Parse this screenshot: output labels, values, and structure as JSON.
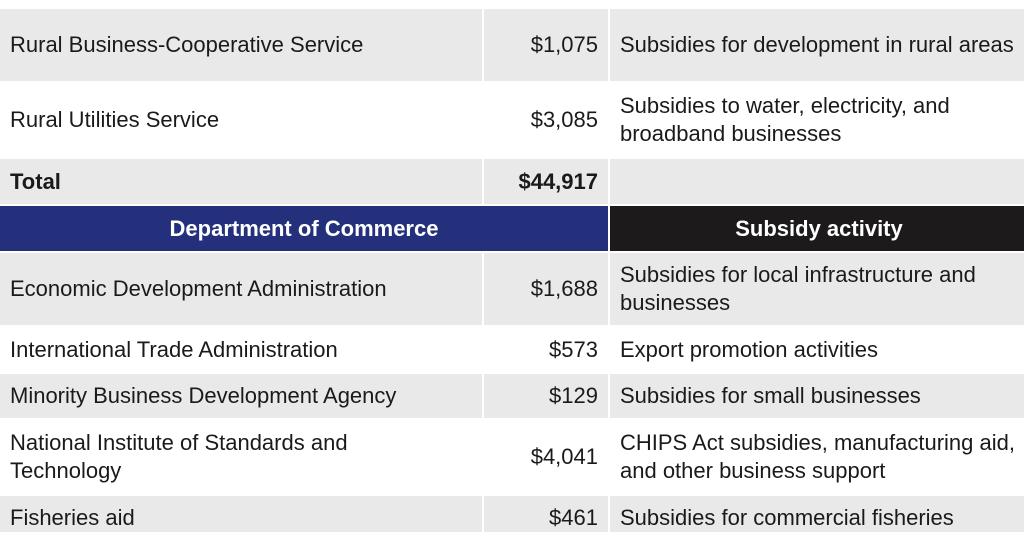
{
  "rows": [
    {
      "agency": "Rural Business-Cooperative Service",
      "amount": "$1,075",
      "activity": "Subsidies for development in rural areas"
    },
    {
      "agency": "Rural Utilities Service",
      "amount": "$3,085",
      "activity": "Subsidies to water, electricity, and broadband businesses"
    },
    {
      "agency": "Total",
      "amount": "$44,917",
      "activity": ""
    }
  ],
  "commerce_header": {
    "department": "Department of Commerce",
    "activity": "Subsidy activity"
  },
  "commerce_rows": [
    {
      "agency": "Economic Development Administration",
      "amount": "$1,688",
      "activity": "Subsidies for local infrastructure and businesses"
    },
    {
      "agency": "International Trade Administration",
      "amount": "$573",
      "activity": "Export promotion activities"
    },
    {
      "agency": "Minority Business Development Agency",
      "amount": "$129",
      "activity": "Subsidies for small businesses"
    },
    {
      "agency": "National Institute of Standards and Technology",
      "amount": "$4,041",
      "activity": "CHIPS Act subsidies, manufacturing aid, and other business support"
    },
    {
      "agency": "Fisheries aid",
      "amount": "$461",
      "activity": "Subsidies for commercial fisheries"
    }
  ],
  "colors": {
    "header_blue": "#24307c",
    "header_black": "#1c1a1a",
    "row_shade": "#e9e9e9"
  }
}
